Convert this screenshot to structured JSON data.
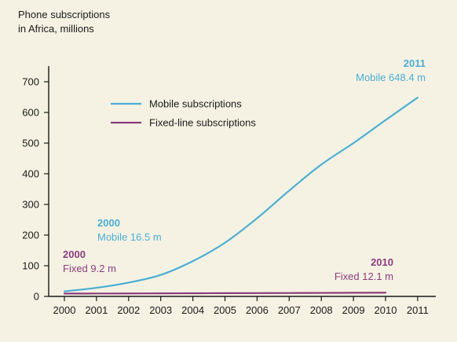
{
  "chart_data": {
    "type": "line",
    "title": [
      "Phone subscriptions",
      "in Africa, millions"
    ],
    "xlabel": "",
    "ylabel": "",
    "x": [
      2000,
      2001,
      2002,
      2003,
      2004,
      2005,
      2006,
      2007,
      2008,
      2009,
      2010,
      2011
    ],
    "xtick_labels": [
      "2000",
      "2001",
      "2002",
      "2003",
      "2004",
      "2005",
      "2006",
      "2007",
      "2008",
      "2009",
      "2010",
      "2011"
    ],
    "ylim": [
      0,
      700
    ],
    "yticks": [
      0,
      100,
      200,
      300,
      400,
      500,
      600,
      700
    ],
    "ytick_labels": [
      "0",
      "100",
      "200",
      "300",
      "400",
      "500",
      "600",
      "700"
    ],
    "grid": false,
    "legend_position": "upper-left",
    "series": [
      {
        "name": "Mobile subscriptions",
        "color": "#4aaed4",
        "x": [
          2000,
          2001,
          2002,
          2003,
          2004,
          2005,
          2006,
          2007,
          2008,
          2009,
          2010,
          2011
        ],
        "values": [
          16.5,
          28,
          45,
          70,
          115,
          175,
          255,
          345,
          430,
          500,
          575,
          648.4
        ]
      },
      {
        "name": "Fixed-line subscriptions",
        "color": "#8b3d7e",
        "x": [
          2000,
          2001,
          2002,
          2003,
          2004,
          2005,
          2006,
          2007,
          2008,
          2009,
          2010
        ],
        "values": [
          9.2,
          9.4,
          9.6,
          9.9,
          10.2,
          10.5,
          10.8,
          11.1,
          11.4,
          11.8,
          12.1
        ]
      }
    ],
    "annotations": [
      {
        "id": "mobile-2011",
        "year": "2011",
        "text": "Mobile 648.4 m",
        "color": "#4aaed4",
        "anchor": "end",
        "x": 2011.1,
        "y": 648.4
      },
      {
        "id": "mobile-2000",
        "year": "2000",
        "text": "Mobile 16.5 m",
        "color": "#4aaed4",
        "anchor": "start",
        "x": 2000.9,
        "y": 16.5
      },
      {
        "id": "fixed-2000",
        "year": "2000",
        "text": "Fixed 9.2 m",
        "color": "#8b3d7e",
        "anchor": "start",
        "x": 1999.9,
        "y": 9.2
      },
      {
        "id": "fixed-2010",
        "year": "2010",
        "text": "Fixed 12.1 m",
        "color": "#8b3d7e",
        "anchor": "end",
        "x": 2010.2,
        "y": 12.1
      }
    ]
  }
}
